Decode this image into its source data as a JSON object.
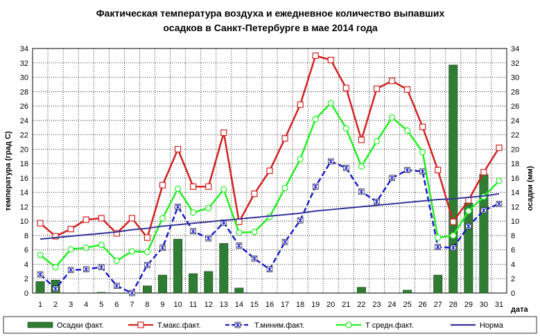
{
  "chart_data": {
    "type": "bar",
    "title_line1": "Фактическая температура воздуха и ежедневное количество выпавших",
    "title_line2": "осадков в Санкт-Петербурге в мае 2014 года",
    "ylabel_left": "температура (град С)",
    "ylabel_right": "осадки (мм)",
    "xlabel": "дата",
    "ylim": [
      0,
      34
    ],
    "y_ticks": [
      "0",
      "2",
      "4",
      "6",
      "8",
      "10",
      "12",
      "14",
      "16",
      "18",
      "20",
      "22",
      "24",
      "26",
      "28",
      "30",
      "32",
      "34"
    ],
    "categories": [
      "1",
      "2",
      "3",
      "4",
      "5",
      "6",
      "7",
      "8",
      "9",
      "10",
      "11",
      "12",
      "13",
      "14",
      "15",
      "16",
      "17",
      "18",
      "19",
      "20",
      "21",
      "22",
      "23",
      "24",
      "25",
      "26",
      "27",
      "28",
      "29",
      "30",
      "31"
    ],
    "grid": true,
    "legend_position": "bottom",
    "series": [
      {
        "name": "Осадки факт.",
        "kind": "bar",
        "color": "#2e7d32",
        "values": [
          1.6,
          1.8,
          0,
          0,
          0.1,
          0,
          0,
          1.0,
          2.5,
          7.5,
          2.7,
          3.0,
          6.9,
          0.7,
          0,
          0,
          0,
          0,
          0,
          0,
          0,
          0.8,
          0,
          0,
          0.4,
          0,
          2.5,
          31.7,
          12.5,
          16.5,
          0
        ]
      },
      {
        "name": "Т.макс.факт.",
        "kind": "line",
        "marker": "square",
        "color": "#d32020",
        "values": [
          9.7,
          7.9,
          8.9,
          10.2,
          10.4,
          8.3,
          10.4,
          7.7,
          15.0,
          20.0,
          14.8,
          14.8,
          22.3,
          9.9,
          13.8,
          17.0,
          21.5,
          26.2,
          33.0,
          32.4,
          28.5,
          21.3,
          28.4,
          29.5,
          28.3,
          23.1,
          17.1,
          9.9,
          12.9,
          16.8,
          20.2
        ]
      },
      {
        "name": "Т.миним.факт.",
        "kind": "line",
        "marker": "star",
        "color": "#1a1acc",
        "values": [
          2.6,
          0.6,
          3.2,
          3.3,
          3.6,
          1.0,
          0.0,
          3.9,
          6.3,
          12.0,
          8.6,
          7.6,
          9.8,
          6.6,
          4.8,
          3.3,
          7.1,
          10.1,
          14.8,
          18.3,
          17.4,
          14.1,
          12.7,
          16.0,
          17.1,
          16.9,
          6.4,
          6.3,
          9.3,
          11.5,
          12.4
        ]
      },
      {
        "name": "Т средн.факт.",
        "kind": "line",
        "marker": "circle",
        "color": "#22ee22",
        "values": [
          5.3,
          3.6,
          6.1,
          6.3,
          6.7,
          4.5,
          5.8,
          5.7,
          10.4,
          14.5,
          11.2,
          11.8,
          14.4,
          8.4,
          8.5,
          10.6,
          14.6,
          18.6,
          24.2,
          26.4,
          22.9,
          17.6,
          21.1,
          24.4,
          22.6,
          19.6,
          7.7,
          8.0,
          11.4,
          13.4,
          15.6
        ]
      },
      {
        "name": "Норма",
        "kind": "line",
        "marker": "none",
        "color": "#333399",
        "values": [
          7.5,
          7.7,
          7.9,
          8.1,
          8.3,
          8.5,
          8.8,
          9.0,
          9.3,
          9.5,
          9.7,
          9.9,
          10.1,
          10.3,
          10.5,
          10.7,
          10.9,
          11.1,
          11.4,
          11.6,
          11.8,
          12.0,
          12.2,
          12.4,
          12.6,
          12.8,
          13.0,
          13.1,
          13.3,
          13.5,
          13.8
        ]
      }
    ]
  }
}
